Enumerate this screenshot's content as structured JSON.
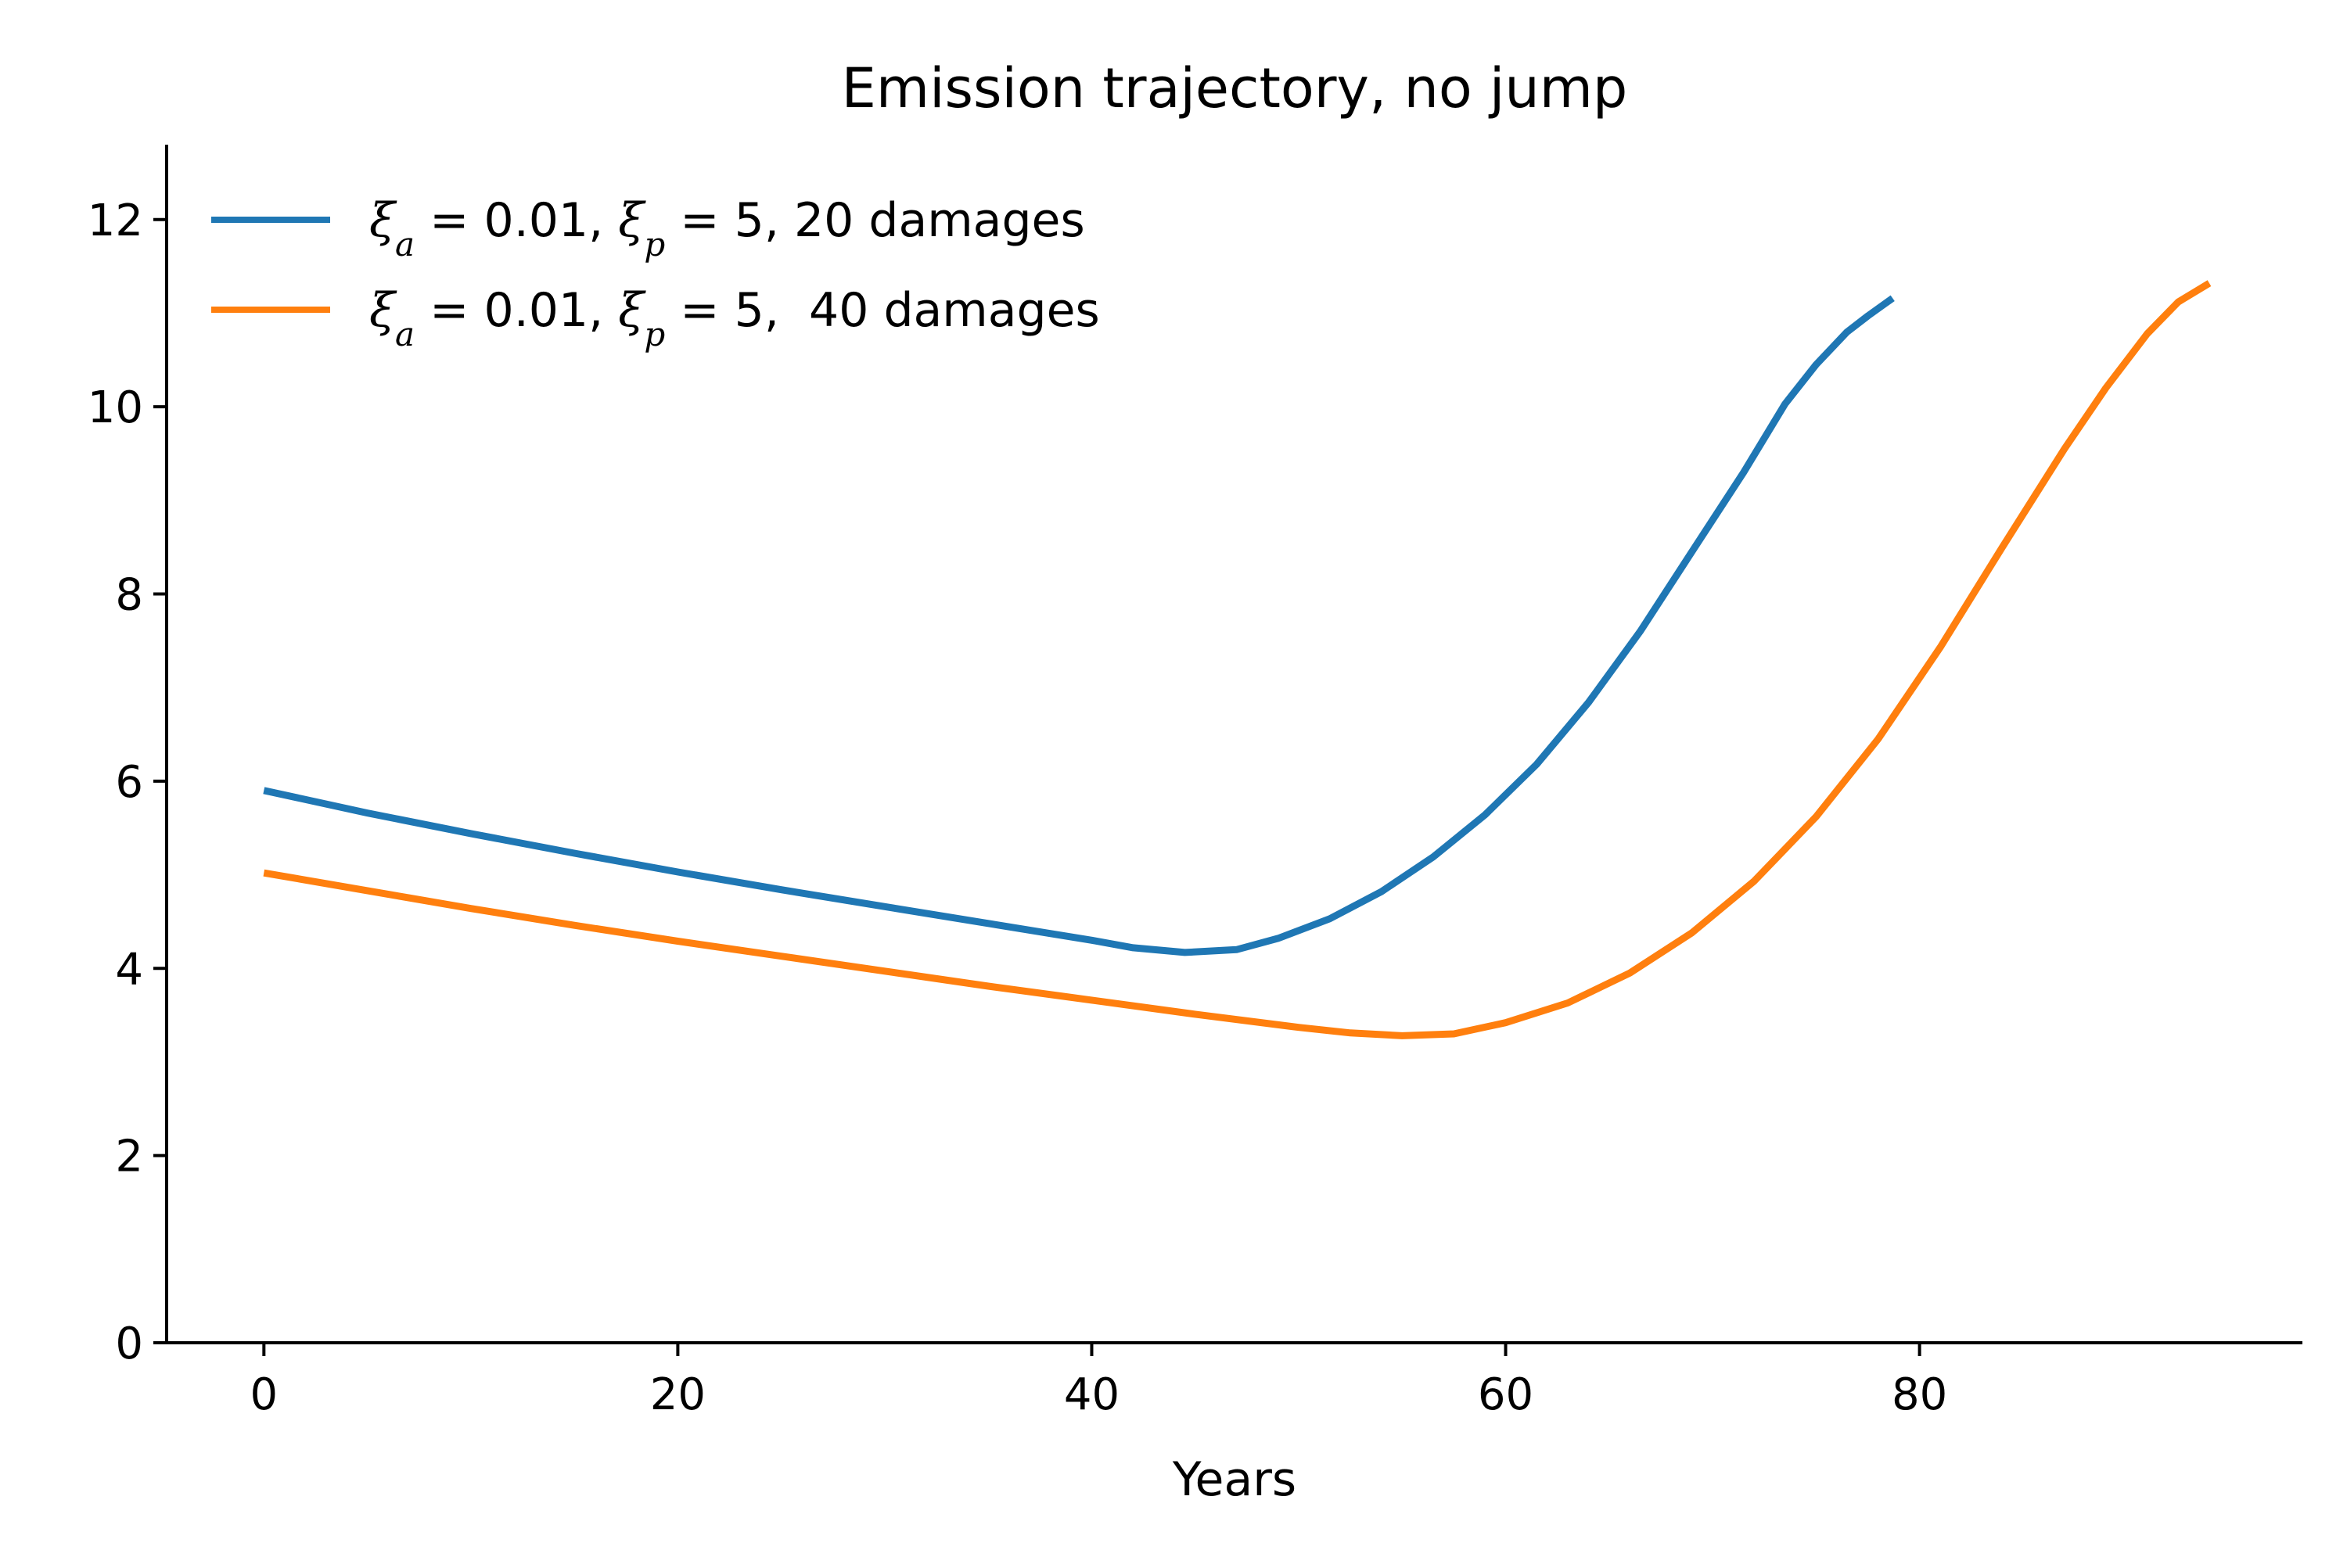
{
  "chart_data": {
    "type": "line",
    "title": "Emission trajectory, no jump",
    "xlabel": "Years",
    "ylabel": "",
    "xlim": [
      -4.7,
      98.5
    ],
    "ylim": [
      0,
      12.8
    ],
    "x_ticks": [
      0,
      20,
      40,
      60,
      80
    ],
    "y_ticks": [
      0,
      2,
      4,
      6,
      8,
      10,
      12
    ],
    "grid": false,
    "legend_position": "top-left",
    "series": [
      {
        "name": "ξa = 0.01, ξp = 5, 20 damages",
        "legend": {
          "xi_a": "0.01",
          "xi_p": "5",
          "suffix": ", 20 damages"
        },
        "color": "#1f77b4",
        "x": [
          0,
          5,
          10,
          15,
          20,
          25,
          30,
          35,
          40,
          42,
          44.5,
          47,
          49,
          51.5,
          54,
          56.5,
          59,
          61.5,
          64,
          66.5,
          69,
          71.5,
          73.5,
          75,
          76.5,
          77.5,
          78.7
        ],
        "y": [
          5.9,
          5.66,
          5.44,
          5.23,
          5.03,
          4.84,
          4.66,
          4.48,
          4.3,
          4.22,
          4.17,
          4.2,
          4.32,
          4.53,
          4.82,
          5.19,
          5.64,
          6.18,
          6.84,
          7.6,
          8.45,
          9.3,
          10.03,
          10.45,
          10.8,
          10.97,
          11.16
        ]
      },
      {
        "name": "ξa = 0.01, ξp = 5,  40 damages",
        "legend": {
          "xi_a": "0.01",
          "xi_p": "5",
          "suffix": ",  40 damages"
        },
        "color": "#ff7f0e",
        "x": [
          0,
          5,
          10,
          15,
          20,
          25,
          30,
          35,
          40,
          45,
          50,
          52.5,
          55,
          57.5,
          60,
          63,
          66,
          69,
          72,
          75,
          78,
          81,
          84,
          87,
          89,
          91,
          92.5,
          94
        ],
        "y": [
          5.02,
          4.83,
          4.64,
          4.46,
          4.29,
          4.13,
          3.97,
          3.81,
          3.66,
          3.51,
          3.37,
          3.31,
          3.28,
          3.3,
          3.42,
          3.63,
          3.95,
          4.38,
          4.93,
          5.62,
          6.45,
          7.43,
          8.5,
          9.55,
          10.2,
          10.78,
          11.12,
          11.32
        ]
      }
    ]
  }
}
